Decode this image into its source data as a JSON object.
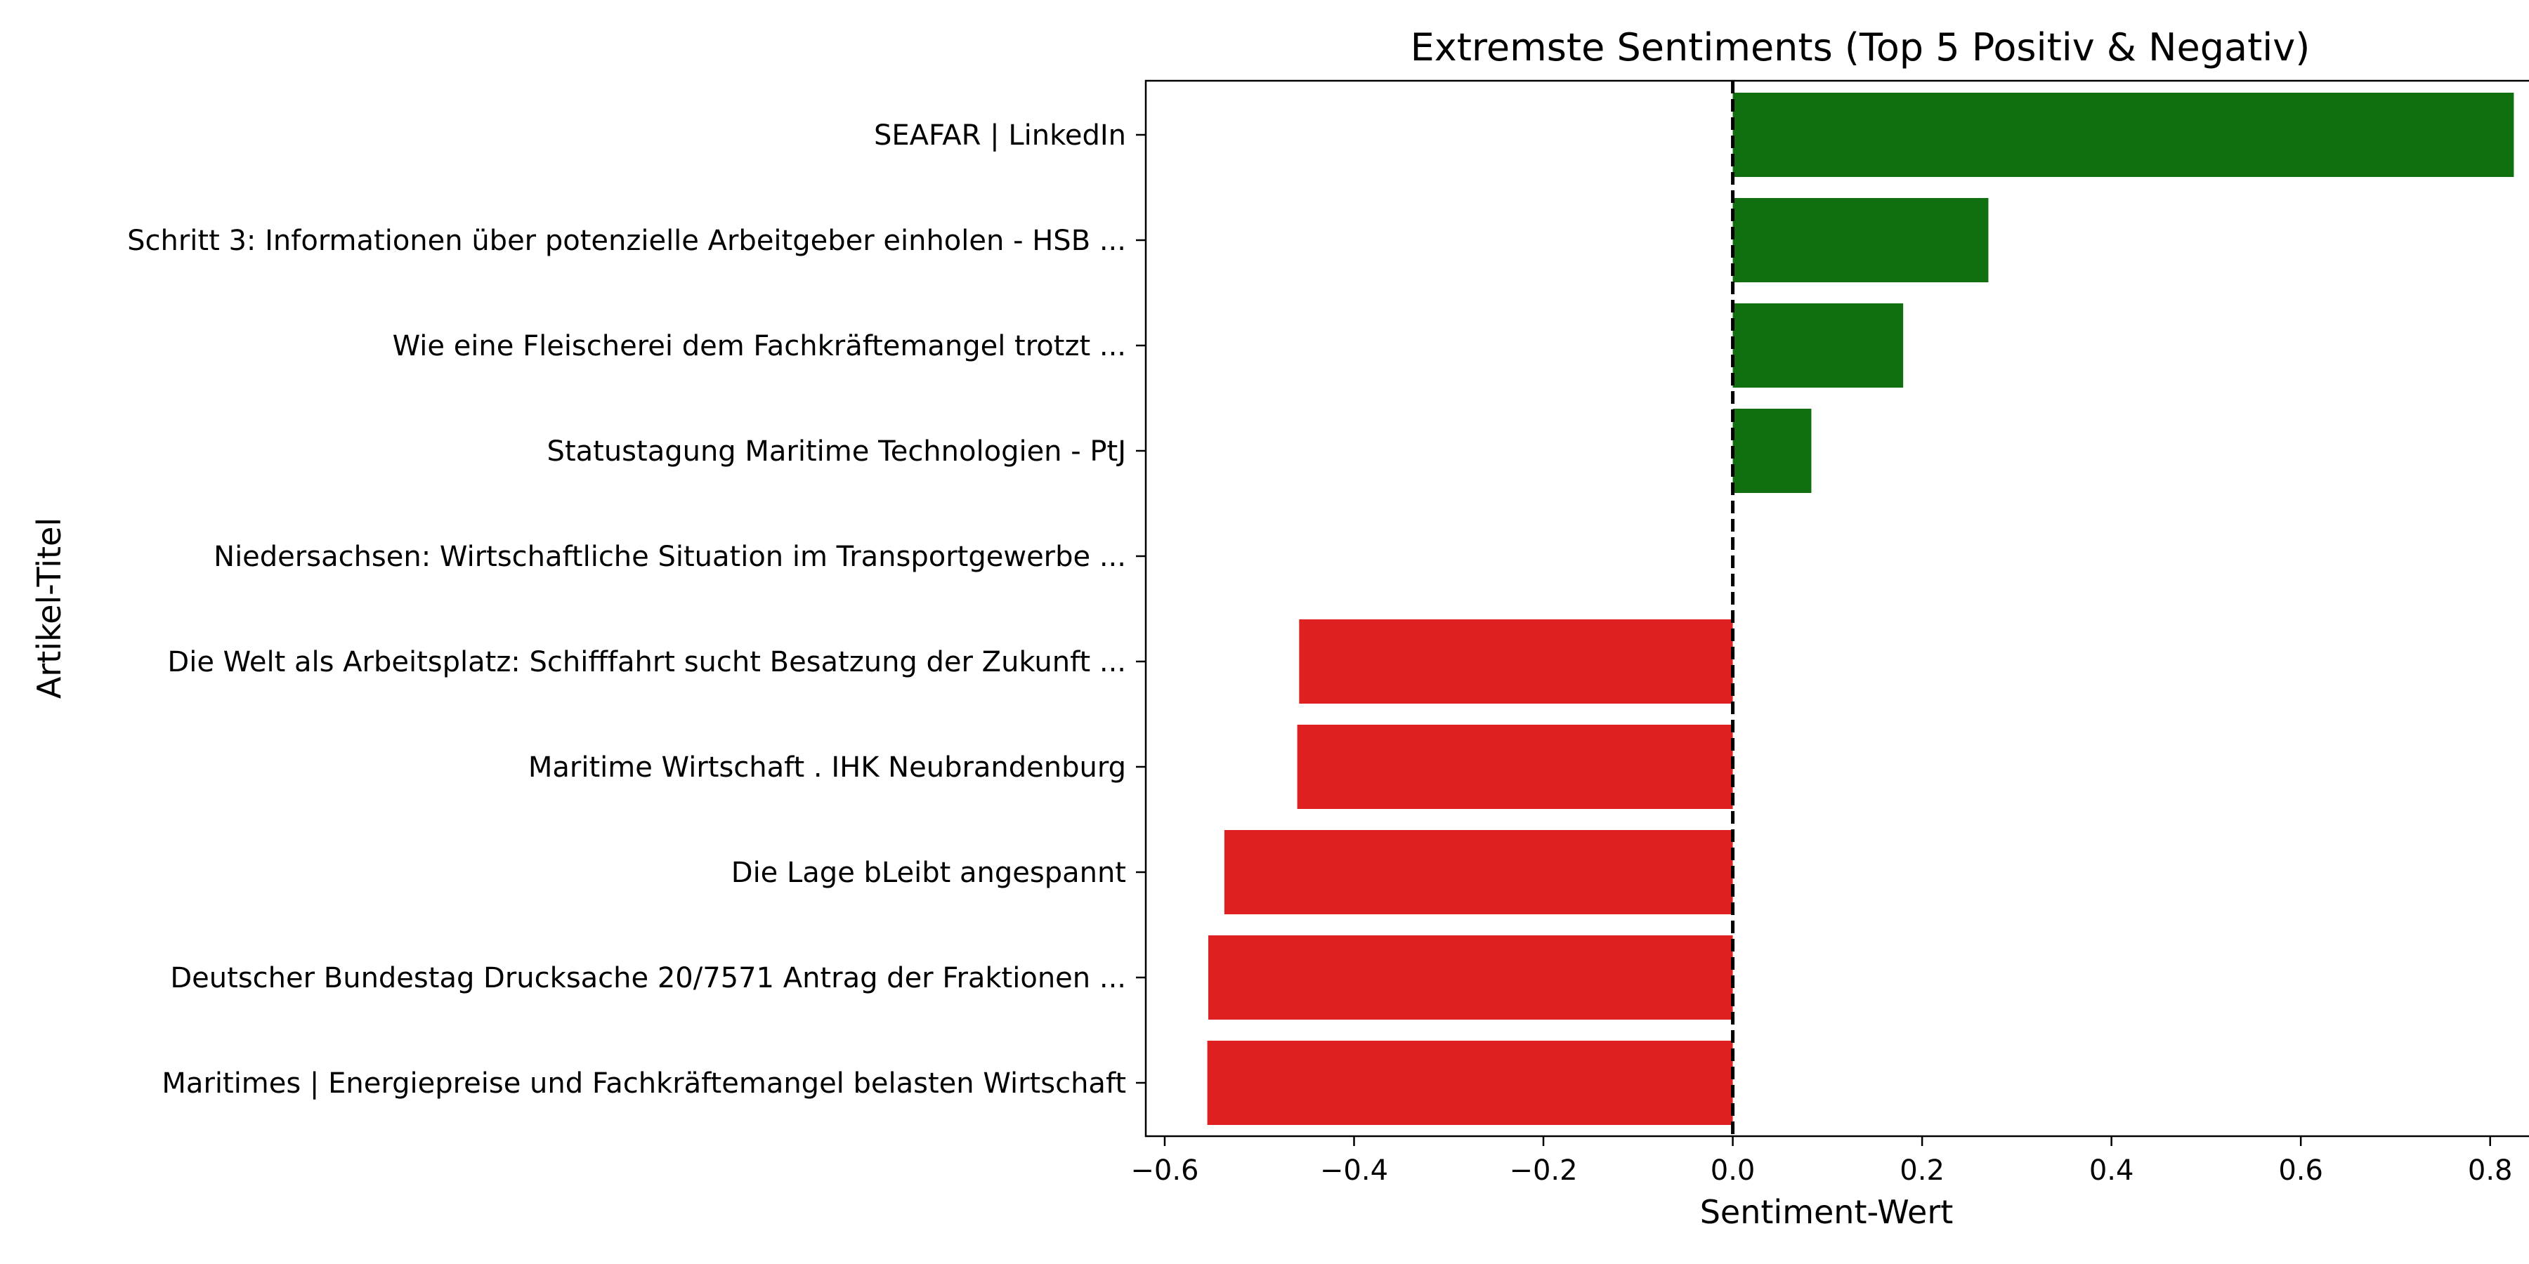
{
  "chart_data": {
    "type": "bar",
    "orientation": "horizontal",
    "title": "Extremste Sentiments (Top 5 Positiv & Negativ)",
    "xlabel": "Sentiment-Wert",
    "ylabel": "Artikel-Titel",
    "xlim": [
      -0.62,
      0.89
    ],
    "xticks": [
      -0.6,
      -0.4,
      -0.2,
      0.0,
      0.2,
      0.4,
      0.6,
      0.8
    ],
    "xtick_labels": [
      "−0.6",
      "−0.4",
      "−0.2",
      "0.0",
      "0.2",
      "0.4",
      "0.6",
      "0.8"
    ],
    "reference_line": {
      "x": 0.0,
      "style": "dashed",
      "color": "#000000"
    },
    "grid": false,
    "colors": {
      "positive": "#107010",
      "negative": "#df2020"
    },
    "categories": [
      "SEAFAR | LinkedIn",
      "Schritt 3: Informationen über potenzielle Arbeitgeber einholen - HSB ...",
      "Wie eine Fleischerei dem Fachkräftemangel trotzt ...",
      "Statustagung Maritime Technologien - PtJ",
      "Niedersachsen: Wirtschaftliche Situation im Transportgewerbe ...",
      "Die Welt als Arbeitsplatz: Schifffahrt sucht Besatzung der Zukunft ...",
      "Maritime Wirtschaft . IHK Neubrandenburg",
      "Die Lage bLeibt angespannt",
      "Deutscher Bundestag Drucksache 20/7571 Antrag der Fraktionen ...",
      "Maritimes | Energiepreise und Fachkräftemangel belasten Wirtschaft"
    ],
    "values": [
      0.825,
      0.27,
      0.18,
      0.083,
      0.0,
      -0.458,
      -0.46,
      -0.537,
      -0.554,
      -0.555
    ]
  }
}
